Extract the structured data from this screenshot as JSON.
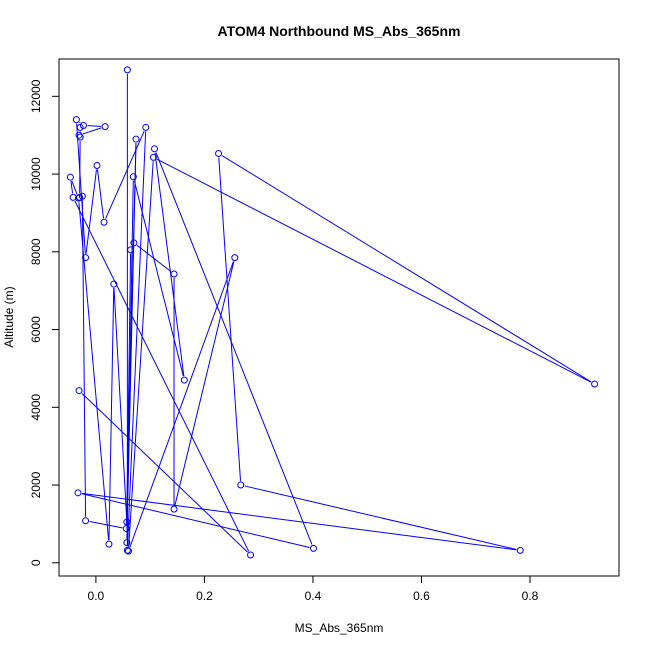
{
  "chart_data": {
    "type": "line",
    "title": "ATOM4 Northbound MS_Abs_365nm",
    "xlabel": "MS_Abs_365nm",
    "ylabel": "Altitude (m)",
    "xlim": [
      -0.068,
      0.964
    ],
    "ylim": [
      -340,
      12960
    ],
    "x_ticks": [
      0.0,
      0.2,
      0.4,
      0.6,
      0.8
    ],
    "x_tick_labels": [
      "0.0",
      "0.2",
      "0.4",
      "0.6",
      "0.8"
    ],
    "y_ticks": [
      0,
      2000,
      4000,
      6000,
      8000,
      10000,
      12000
    ],
    "y_tick_labels": [
      "0",
      "2000",
      "4000",
      "6000",
      "8000",
      "10000",
      "12000"
    ],
    "grid": false,
    "legend": "none",
    "series_color": "#0000ff",
    "marker": "open-circle",
    "points": [
      {
        "x": 0.058,
        "y": 12680
      },
      {
        "x": 0.058,
        "y": 320
      },
      {
        "x": 0.092,
        "y": 11200
      },
      {
        "x": 0.015,
        "y": 8760
      },
      {
        "x": 0.002,
        "y": 10220
      },
      {
        "x": -0.019,
        "y": 7850
      },
      {
        "x": -0.036,
        "y": 11400
      },
      {
        "x": -0.023,
        "y": 11250
      },
      {
        "x": 0.017,
        "y": 11220
      },
      {
        "x": -0.031,
        "y": 11000
      },
      {
        "x": -0.029,
        "y": 11200
      },
      {
        "x": -0.029,
        "y": 10950
      },
      {
        "x": -0.03,
        "y": 9400
      },
      {
        "x": -0.025,
        "y": 9430
      },
      {
        "x": -0.019,
        "y": 1080
      },
      {
        "x": 0.056,
        "y": 880
      },
      {
        "x": 0.074,
        "y": 10900
      },
      {
        "x": 0.057,
        "y": 520
      },
      {
        "x": 0.069,
        "y": 9930
      },
      {
        "x": 0.163,
        "y": 4700
      },
      {
        "x": 0.108,
        "y": 10650
      },
      {
        "x": 0.401,
        "y": 370
      },
      {
        "x": -0.033,
        "y": 1800
      },
      {
        "x": 0.782,
        "y": 320
      },
      {
        "x": 0.267,
        "y": 2000
      },
      {
        "x": 0.226,
        "y": 10530
      },
      {
        "x": 0.919,
        "y": 4600
      },
      {
        "x": 0.106,
        "y": 10430
      },
      {
        "x": 0.06,
        "y": 300
      },
      {
        "x": 0.256,
        "y": 7850
      },
      {
        "x": 0.144,
        "y": 1380
      },
      {
        "x": 0.144,
        "y": 7430
      },
      {
        "x": 0.07,
        "y": 8230
      },
      {
        "x": 0.064,
        "y": 8050
      },
      {
        "x": 0.057,
        "y": 1050
      },
      {
        "x": 0.033,
        "y": 7170
      },
      {
        "x": 0.024,
        "y": 480
      },
      {
        "x": -0.032,
        "y": 9380
      },
      {
        "x": -0.047,
        "y": 9920
      },
      {
        "x": -0.042,
        "y": 9400
      },
      {
        "x": 0.285,
        "y": 200
      },
      {
        "x": -0.031,
        "y": 4430
      }
    ]
  }
}
